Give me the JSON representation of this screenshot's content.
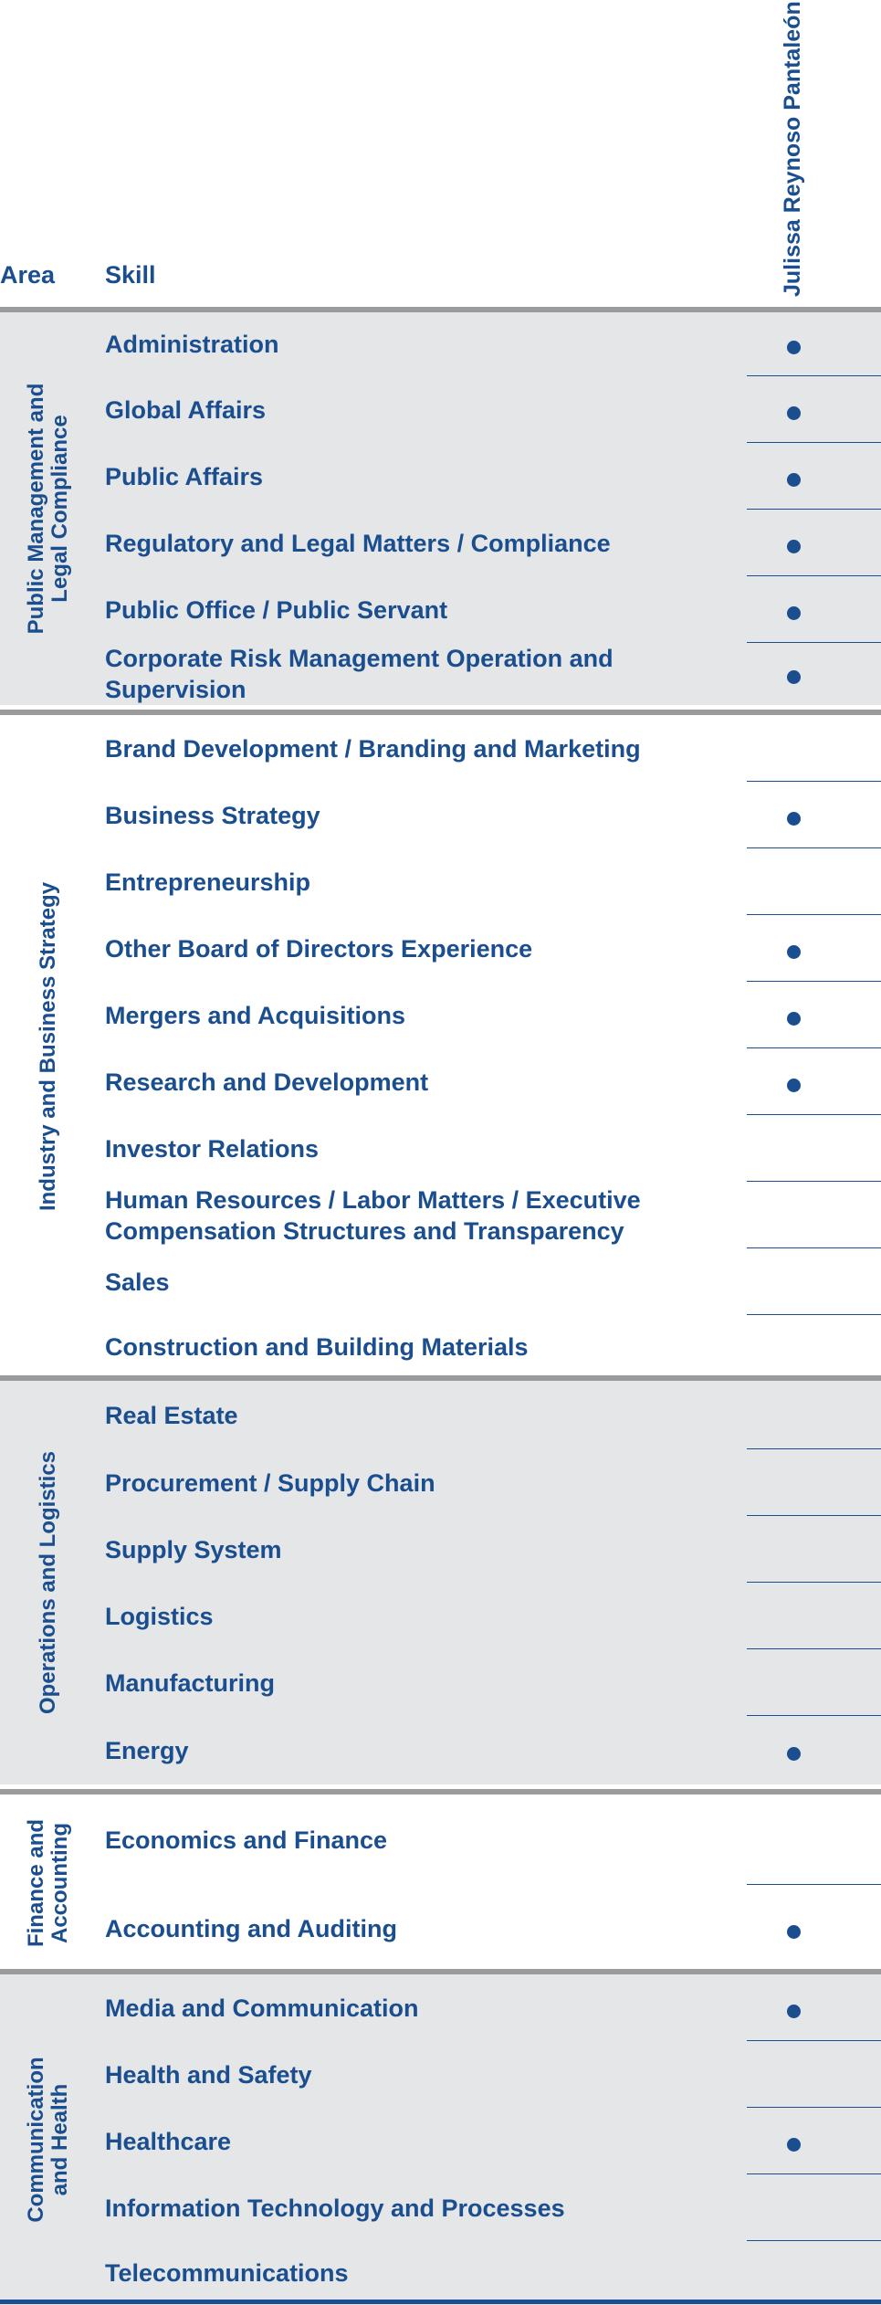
{
  "header": {
    "area_label": "Area",
    "skill_label": "Skill",
    "person_name": "Julissa Reynoso Pantaleón"
  },
  "areas": [
    {
      "name": "Public Management and\nLegal Compliance",
      "skills": [
        {
          "label": "Administration",
          "checked": true
        },
        {
          "label": "Global Affairs",
          "checked": true
        },
        {
          "label": "Public Affairs",
          "checked": true
        },
        {
          "label": "Regulatory and Legal Matters / Compliance",
          "checked": true
        },
        {
          "label": "Public Office / Public Servant",
          "checked": true
        },
        {
          "label": "Corporate Risk Management Operation and Supervision",
          "checked": true
        }
      ]
    },
    {
      "name": "Industry and Business Strategy",
      "skills": [
        {
          "label": "Brand Development / Branding and Marketing",
          "checked": false
        },
        {
          "label": "Business Strategy",
          "checked": true
        },
        {
          "label": "Entrepreneurship",
          "checked": false
        },
        {
          "label": "Other Board of Directors Experience",
          "checked": true
        },
        {
          "label": "Mergers and Acquisitions",
          "checked": true
        },
        {
          "label": "Research and Development",
          "checked": true
        },
        {
          "label": "Investor Relations",
          "checked": false
        },
        {
          "label": "Human Resources / Labor Matters / Executive Compensation Structures and Transparency",
          "checked": false
        },
        {
          "label": "Sales",
          "checked": false
        },
        {
          "label": "Construction and Building Materials",
          "checked": false
        }
      ]
    },
    {
      "name": "Operations and Logistics",
      "skills": [
        {
          "label": "Real Estate",
          "checked": false
        },
        {
          "label": "Procurement / Supply Chain",
          "checked": false
        },
        {
          "label": "Supply System",
          "checked": false
        },
        {
          "label": "Logistics",
          "checked": false
        },
        {
          "label": "Manufacturing",
          "checked": false
        },
        {
          "label": "Energy",
          "checked": true
        }
      ]
    },
    {
      "name": "Finance and\nAccounting",
      "skills": [
        {
          "label": "Economics and Finance",
          "checked": false
        },
        {
          "label": "Accounting and Auditing",
          "checked": true
        }
      ]
    },
    {
      "name": "Communication\nand Health",
      "skills": [
        {
          "label": "Media and Communication",
          "checked": true
        },
        {
          "label": "Health and Safety",
          "checked": false
        },
        {
          "label": "Healthcare",
          "checked": true
        },
        {
          "label": "Information Technology and Processes",
          "checked": false
        },
        {
          "label": "Telecommunications",
          "checked": false
        }
      ]
    }
  ]
}
